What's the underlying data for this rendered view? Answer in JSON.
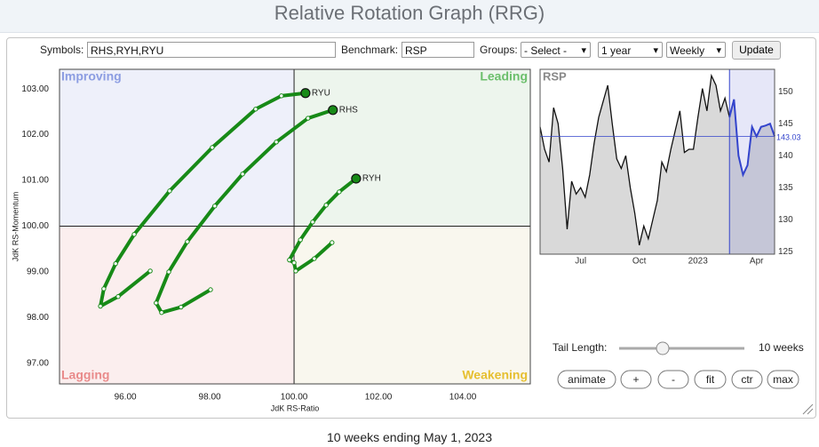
{
  "header": {
    "title": "Relative Rotation Graph (RRG)"
  },
  "controls": {
    "symbols_label": "Symbols:",
    "symbols_value": "RHS,RYH,RYU",
    "benchmark_label": "Benchmark:",
    "benchmark_value": "RSP",
    "groups_label": "Groups:",
    "groups_value": "- Select -",
    "period_value": "1 year",
    "frequency_value": "Weekly",
    "update_button": "Update"
  },
  "chart_data": [
    {
      "type": "line",
      "x_label": "JdK RS-Ratio",
      "y_label": "JdK RS-Momentum",
      "xlim": [
        94.44,
        105.6
      ],
      "ylim": [
        96.55,
        103.43
      ],
      "xticks": [
        {
          "value": 96,
          "label": "96.00"
        },
        {
          "value": 98,
          "label": "98.00"
        },
        {
          "value": 100,
          "label": "100.00"
        },
        {
          "value": 102,
          "label": "102.00"
        },
        {
          "value": 104,
          "label": "104.00"
        }
      ],
      "yticks": [
        {
          "value": 97,
          "label": "97.00"
        },
        {
          "value": 98,
          "label": "98.00"
        },
        {
          "value": 99,
          "label": "99.00"
        },
        {
          "value": 100,
          "label": "100.00"
        },
        {
          "value": 101,
          "label": "101.00"
        },
        {
          "value": 102,
          "label": "102.00"
        },
        {
          "value": 103,
          "label": "103.00"
        }
      ],
      "reference_lines": {
        "x": 100,
        "y": 100
      },
      "quadrants": [
        {
          "label": "Improving",
          "color": "#8c9de2",
          "background": "#eef0fa"
        },
        {
          "label": "Leading",
          "color": "#6cbf6c",
          "background": "#edf5ed"
        },
        {
          "label": "Lagging",
          "color": "#e98a8a",
          "background": "#fbeeee"
        },
        {
          "label": "Weakening",
          "color": "#e6bf30",
          "background": "#f9f7ee"
        }
      ],
      "series": [
        {
          "name": "RYU",
          "color": "#178a17",
          "x": [
            96.59,
            95.83,
            95.41,
            95.49,
            95.77,
            96.21,
            97.05,
            98.06,
            99.09,
            99.7,
            100.27
          ],
          "values": [
            99.02,
            98.46,
            98.25,
            98.63,
            99.18,
            99.82,
            100.77,
            101.72,
            102.56,
            102.85,
            102.91
          ]
        },
        {
          "name": "RHS",
          "color": "#178a17",
          "x": [
            98.02,
            97.32,
            96.86,
            96.73,
            97.03,
            97.47,
            98.12,
            98.78,
            99.58,
            100.33,
            100.92
          ],
          "values": [
            98.61,
            98.23,
            98.11,
            98.32,
            99.0,
            99.66,
            100.44,
            101.14,
            101.84,
            102.36,
            102.54
          ]
        },
        {
          "name": "RYH",
          "color": "#178a17",
          "x": [
            100.9,
            100.48,
            100.04,
            100.0,
            99.89,
            100.15,
            100.44,
            100.76,
            101.07,
            101.47
          ],
          "values": [
            99.64,
            99.29,
            99.02,
            99.2,
            99.26,
            99.7,
            100.09,
            100.46,
            100.75,
            101.04
          ]
        }
      ]
    },
    {
      "type": "line",
      "title": "RSP",
      "color": "#111111",
      "tail_color": "#3344cc",
      "categories": [
        null,
        null,
        null,
        null,
        null,
        null,
        null,
        null,
        null,
        "Jul",
        null,
        null,
        null,
        null,
        null,
        null,
        null,
        null,
        null,
        null,
        null,
        null,
        "Oct",
        null,
        null,
        null,
        null,
        null,
        null,
        null,
        null,
        null,
        null,
        null,
        null,
        "2023",
        null,
        null,
        null,
        null,
        null,
        null,
        null,
        null,
        null,
        null,
        null,
        null,
        "Apr",
        null,
        null,
        null,
        null
      ],
      "values": [
        144.5,
        141,
        139,
        147.5,
        145,
        138,
        128.5,
        136,
        134,
        135,
        133.5,
        137,
        142,
        146,
        148.5,
        151,
        145,
        139.5,
        138,
        140,
        135,
        131,
        126,
        129,
        127,
        130,
        133,
        139,
        137.5,
        141,
        144,
        147,
        140.5,
        141,
        141,
        146,
        150.5,
        147,
        152.5,
        151,
        147,
        149,
        146,
        148.8,
        140,
        137,
        138.5,
        144.5,
        143,
        144.5,
        144.7,
        145,
        143.03
      ],
      "last_value_label": "143.03",
      "ylim": [
        124.6,
        153.5
      ],
      "yticks": [
        125,
        130,
        135,
        140,
        145,
        150
      ]
    }
  ],
  "tail_controls": {
    "label": "Tail Length:",
    "tail_length": {
      "value": 10,
      "label": "10 weeks"
    },
    "buttons": [
      "animate",
      "+",
      "-",
      "fit",
      "ctr",
      "max"
    ]
  },
  "footer": "10 weeks ending May 1, 2023"
}
